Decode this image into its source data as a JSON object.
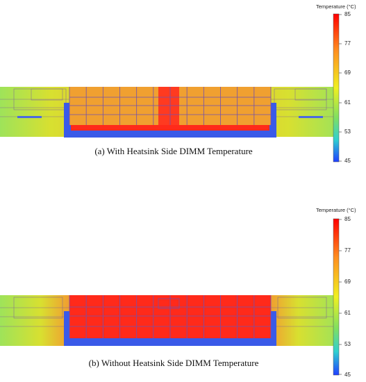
{
  "panels": [
    {
      "id": "a",
      "caption": "(a) With Heatsink Side DIMM Temperature",
      "colorbar_title": "Temperature (°C)",
      "ticks": [
        "85",
        "77",
        "69",
        "61",
        "53",
        "45"
      ],
      "dimm_state": "orange"
    },
    {
      "id": "b",
      "caption": "(b) Without Heatsink Side DIMM Temperature",
      "colorbar_title": "Temperature (°C)",
      "ticks": [
        "85",
        "77",
        "69",
        "61",
        "53",
        "45"
      ],
      "dimm_state": "red"
    }
  ],
  "colors": {
    "hot": "#ff2020",
    "warm": "#f2a030",
    "mid": "#d8e030",
    "cool": "#a8e050",
    "cold": "#3a60e8"
  }
}
